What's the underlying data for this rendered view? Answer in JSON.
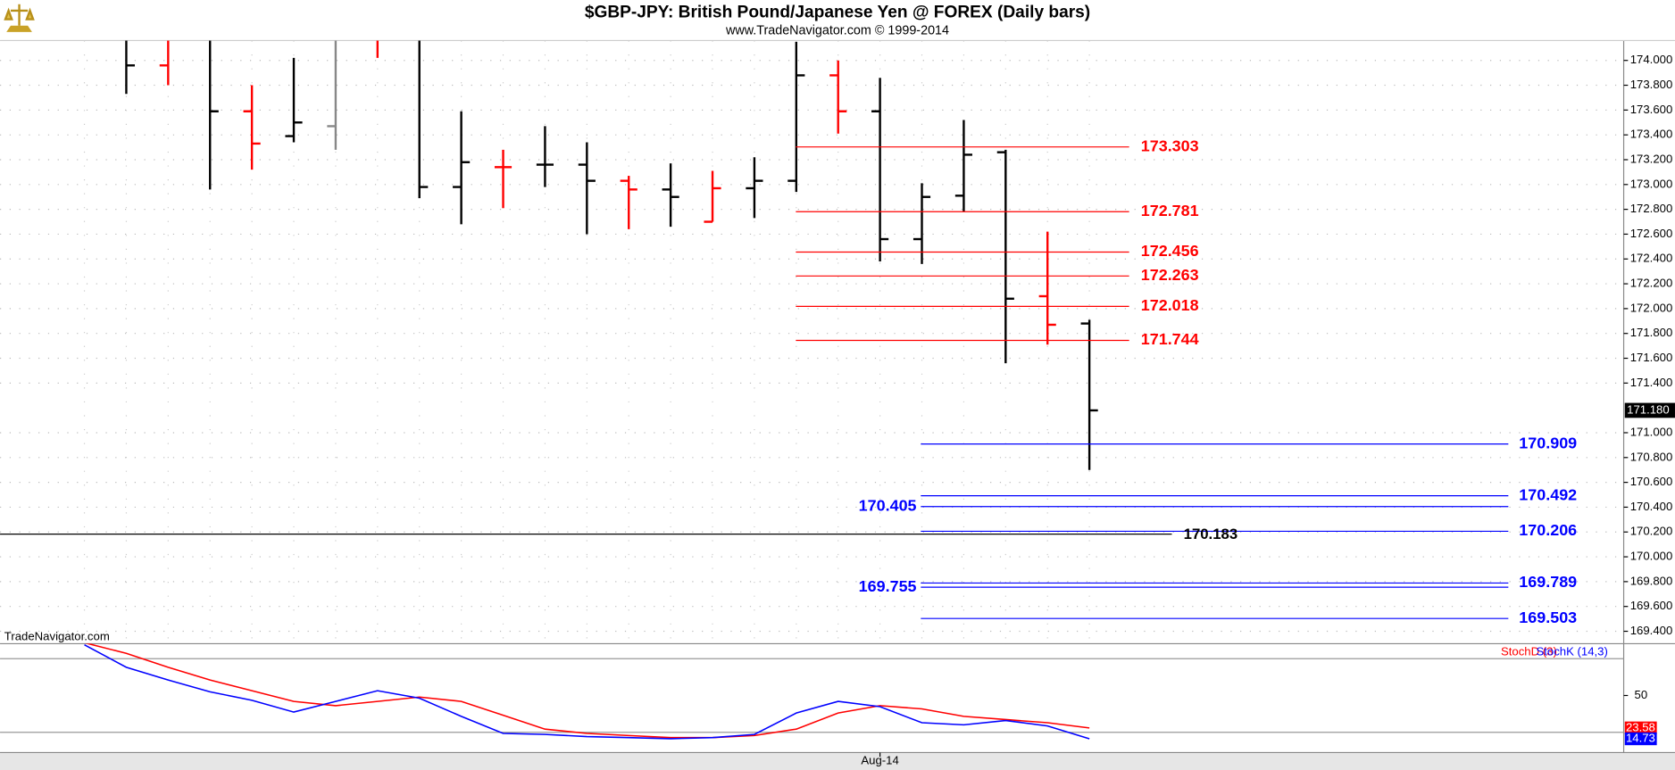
{
  "header": {
    "title": "$GBP-JPY:  British Pound/Japanese Yen @ FOREX  (Daily bars)",
    "subtitle": "www.TradeNavigator.com © 1999-2014",
    "watermark": "TradeNavigator.com"
  },
  "chart_data": [
    {
      "type": "ohlc",
      "open": [
        null,
        null,
        173.96,
        null,
        173.59,
        173.39,
        173.47,
        null,
        null,
        172.98,
        173.14,
        173.16,
        173.16,
        173.03,
        172.96,
        172.7,
        172.97,
        173.03,
        173.88,
        173.59,
        172.56,
        172.91,
        173.26,
        172.1,
        171.88
      ],
      "high": [
        null,
        174.3,
        174.3,
        174.3,
        173.8,
        174.02,
        174.3,
        174.3,
        174.3,
        173.59,
        173.28,
        173.47,
        173.34,
        173.07,
        173.17,
        173.11,
        173.22,
        174.15,
        174.0,
        173.86,
        173.01,
        173.52,
        173.28,
        172.62,
        171.91
      ],
      "low": [
        null,
        173.73,
        173.8,
        172.96,
        173.12,
        173.34,
        173.28,
        174.02,
        172.89,
        172.68,
        172.81,
        172.98,
        172.6,
        172.64,
        172.66,
        172.7,
        172.73,
        172.94,
        173.41,
        172.38,
        172.36,
        172.78,
        171.56,
        171.71,
        170.7
      ],
      "close": [
        null,
        173.96,
        null,
        173.59,
        173.33,
        173.5,
        null,
        null,
        172.98,
        173.18,
        173.14,
        173.16,
        173.03,
        172.96,
        172.9,
        172.97,
        173.03,
        173.88,
        173.59,
        172.56,
        172.9,
        173.24,
        172.08,
        171.87,
        171.18
      ],
      "colors": [
        null,
        "#000000",
        "#ff0000",
        "#000000",
        "#ff0000",
        "#000000",
        "#888888",
        "#ff0000",
        "#000000",
        "#000000",
        "#ff0000",
        "#000000",
        "#000000",
        "#ff0000",
        "#000000",
        "#ff0000",
        "#000000",
        "#000000",
        "#ff0000",
        "#000000",
        "#000000",
        "#000000",
        "#000000",
        "#ff0000",
        "#000000"
      ],
      "ylim": [
        169.3,
        174.16
      ],
      "yticks": [
        {
          "value": 174,
          "label": "174.000"
        },
        {
          "value": 173.8,
          "label": "173.800"
        },
        {
          "value": 173.6,
          "label": "173.600"
        },
        {
          "value": 173.4,
          "label": "173.400"
        },
        {
          "value": 173.2,
          "label": "173.200"
        },
        {
          "value": 173,
          "label": "173.000"
        },
        {
          "value": 172.8,
          "label": "172.800"
        },
        {
          "value": 172.6,
          "label": "172.600"
        },
        {
          "value": 172.4,
          "label": "172.400"
        },
        {
          "value": 172.2,
          "label": "172.200"
        },
        {
          "value": 172,
          "label": "172.000"
        },
        {
          "value": 171.8,
          "label": "171.800"
        },
        {
          "value": 171.6,
          "label": "171.600"
        },
        {
          "value": 171.4,
          "label": "171.400"
        },
        {
          "value": 171,
          "label": "171.000"
        },
        {
          "value": 170.8,
          "label": "170.800"
        },
        {
          "value": 170.6,
          "label": "170.600"
        },
        {
          "value": 170.4,
          "label": "170.400"
        },
        {
          "value": 170.2,
          "label": "170.200"
        },
        {
          "value": 170,
          "label": "170.000"
        },
        {
          "value": 169.8,
          "label": "169.800"
        },
        {
          "value": 169.6,
          "label": "169.600"
        },
        {
          "value": 169.4,
          "label": "169.400"
        }
      ],
      "last_price": {
        "value": 171.18,
        "label": "171.180"
      },
      "levels": [
        {
          "value": 173.303,
          "color": "#ff0000",
          "label_side": "right"
        },
        {
          "value": 172.781,
          "color": "#ff0000",
          "label_side": "right"
        },
        {
          "value": 172.456,
          "color": "#ff0000",
          "label_side": "right"
        },
        {
          "value": 172.263,
          "color": "#ff0000",
          "label_side": "right"
        },
        {
          "value": 172.018,
          "color": "#ff0000",
          "label_side": "right"
        },
        {
          "value": 171.744,
          "color": "#ff0000",
          "label_side": "right"
        },
        {
          "value": 170.909,
          "color": "#0000ff",
          "label_side": "right"
        },
        {
          "value": 170.492,
          "color": "#0000ff",
          "label_side": "right"
        },
        {
          "value": 170.405,
          "color": "#0000ff",
          "label_side": "left"
        },
        {
          "value": 170.206,
          "color": "#0000ff",
          "label_side": "right"
        },
        {
          "value": 170.183,
          "color": "#000000",
          "label_side": "right"
        },
        {
          "value": 169.789,
          "color": "#0000ff",
          "label_side": "right"
        },
        {
          "value": 169.755,
          "color": "#0000ff",
          "label_side": "left"
        },
        {
          "value": 169.503,
          "color": "#0000ff",
          "label_side": "right"
        }
      ],
      "grid": true
    },
    {
      "type": "line",
      "categories": [
        null,
        null,
        null,
        null,
        null,
        null,
        null,
        null,
        null,
        null,
        null,
        null,
        null,
        null,
        null,
        null,
        null,
        null,
        null,
        "Aug-14",
        null,
        null,
        null,
        null,
        null
      ],
      "series": [
        {
          "name": "StochD (3)",
          "color": "#ff0000",
          "values": [
            93,
            84.3,
            73,
            62.6,
            53.9,
            45.2,
            41.7,
            45.2,
            48.7,
            45.2,
            33.9,
            22.6,
            19.1,
            17.4,
            15.7,
            15.7,
            17.4,
            22.6,
            35.7,
            41.7,
            39.1,
            33,
            30.4,
            27.8,
            23.58
          ],
          "value_labels": [
            null,
            null,
            null,
            null,
            null,
            null,
            null,
            null,
            null,
            null,
            null,
            null,
            null,
            null,
            null,
            null,
            null,
            null,
            null,
            null,
            null,
            null,
            null,
            null,
            "23.58"
          ]
        },
        {
          "name": "StochK (14,3)",
          "color": "#0000ff",
          "values": [
            91.3,
            73,
            62.6,
            53,
            46.1,
            36.5,
            45.2,
            53.9,
            47.8,
            33,
            19.1,
            18.3,
            16.5,
            15.7,
            14.8,
            15.7,
            18.3,
            35.7,
            45.2,
            40.9,
            27.8,
            26.1,
            29.6,
            25.2,
            14.73
          ],
          "value_labels": [
            null,
            null,
            null,
            null,
            null,
            null,
            null,
            null,
            null,
            null,
            null,
            null,
            null,
            null,
            null,
            null,
            null,
            null,
            null,
            null,
            null,
            null,
            null,
            null,
            "14.73"
          ]
        }
      ],
      "ylim": [
        3.5,
        92.2
      ],
      "yticks": [
        50
      ],
      "levels": [
        80,
        20
      ]
    }
  ]
}
